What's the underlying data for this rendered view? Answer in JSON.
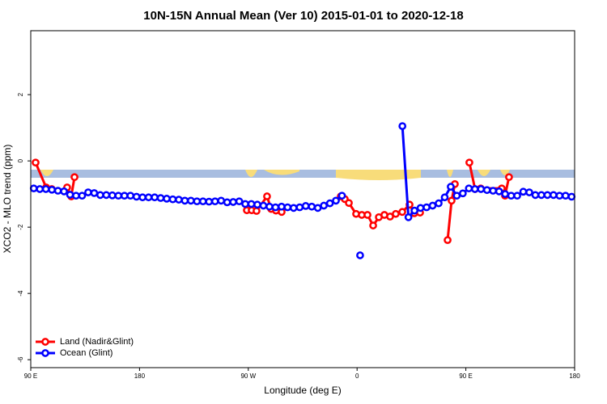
{
  "chart_data": {
    "type": "line",
    "title": "10N-15N Annual Mean (Ver 10)   2015-01-01 to 2020-12-18",
    "x_label": "Longitude (deg E)",
    "y_label": "XCO2 - MLO trend (ppm)",
    "xlim": [
      90,
      540
    ],
    "xticks": [
      {
        "value": 90,
        "label": "90 E"
      },
      180,
      {
        "value": 270,
        "label": "90 W"
      },
      {
        "value": 360,
        "label": "0"
      },
      {
        "value": 450,
        "label": "90 E"
      },
      {
        "value": 540,
        "label": "180"
      }
    ],
    "ylim": [
      -6.24,
      3.93
    ],
    "yticks": [
      -6,
      -4,
      -2,
      0,
      2
    ],
    "legend": "bottom-left",
    "series": [
      {
        "name": "Land (Nadir&Glint)",
        "color": "#ff0000",
        "x": [
          94.0,
          102.7,
          107.4,
          110,
          120.1,
          123.5,
          126.2,
          130,
          268.8,
          272.8,
          276.8,
          285.5,
          288.9,
          292.9,
          297.6,
          300,
          346.5,
          349.8,
          353.2,
          359.2,
          363.9,
          368.6,
          373.3,
          378.0,
          382.6,
          387.3,
          392.0,
          397.4,
          403.4,
          407.4,
          412.1,
          420,
          434.9,
          438.2,
          440.9,
          445,
          452.9,
          457.6,
          462.3,
          479.7,
          482.4,
          485.7
        ],
        "values": [
          -0.05,
          -0.8,
          -0.85,
          null,
          -0.8,
          -1.07,
          -0.49,
          null,
          -1.49,
          -1.49,
          -1.51,
          -1.07,
          -1.45,
          -1.5,
          -1.54,
          null,
          -1.07,
          -1.15,
          -1.27,
          -1.6,
          -1.63,
          -1.63,
          -1.95,
          -1.7,
          -1.63,
          -1.68,
          -1.6,
          -1.54,
          -1.32,
          -1.58,
          -1.56,
          null,
          -2.39,
          -1.2,
          -0.7,
          null,
          -0.05,
          -0.85,
          -0.83,
          -0.83,
          -1.05,
          -0.49
        ]
      },
      {
        "name": "Ocean (Glint)",
        "color": "#0000ff",
        "x": [
          92.5,
          97.5,
          102.5,
          107.5,
          112.5,
          117.5,
          122.5,
          127.5,
          132.5,
          137.5,
          142.5,
          147.5,
          152.5,
          157.5,
          162.5,
          167.5,
          172.5,
          177.5,
          182.5,
          187.5,
          192.5,
          197.5,
          202.5,
          207.5,
          212.5,
          217.5,
          222.5,
          227.5,
          232.5,
          237.5,
          242.5,
          247.5,
          252.5,
          257.5,
          262.5,
          267.5,
          272.5,
          277.5,
          282.5,
          287.5,
          292.5,
          297.5,
          302.5,
          307.5,
          312.5,
          317.5,
          322.5,
          327.5,
          332.5,
          337.5,
          342.5,
          347.5,
          352.5,
          357.5,
          362.5,
          367.5,
          372.5,
          377.5,
          382.5,
          387.5,
          392.5,
          397.5,
          402.5,
          407.5,
          412.5,
          417.5,
          422.5,
          427.5,
          432.5,
          437.5,
          442.5,
          447.5,
          452.5,
          457.5,
          462.5,
          467.5,
          472.5,
          477.5,
          482.5,
          487.5,
          492.5,
          497.5,
          502.5,
          507.5,
          512.5,
          517.5,
          522.5,
          527.5,
          532.5,
          537.5
        ],
        "values": [
          -0.83,
          -0.85,
          -0.85,
          -0.87,
          -0.9,
          -0.92,
          -1.02,
          -1.05,
          -1.05,
          -0.95,
          -0.97,
          -1.03,
          -1.03,
          -1.04,
          -1.05,
          -1.05,
          -1.05,
          -1.08,
          -1.1,
          -1.1,
          -1.1,
          -1.12,
          -1.14,
          -1.16,
          -1.17,
          -1.2,
          -1.2,
          -1.22,
          -1.22,
          -1.23,
          -1.22,
          -1.2,
          -1.25,
          -1.24,
          -1.22,
          -1.3,
          -1.3,
          -1.32,
          -1.35,
          -1.38,
          -1.4,
          -1.38,
          -1.4,
          -1.42,
          -1.4,
          -1.36,
          -1.38,
          -1.42,
          -1.35,
          -1.28,
          -1.2,
          -1.05,
          null,
          null,
          -2.85,
          null,
          null,
          null,
          null,
          null,
          null,
          1.05,
          -1.7,
          -1.5,
          -1.42,
          -1.4,
          -1.35,
          -1.28,
          -1.1,
          -0.78,
          -1.05,
          -0.98,
          -0.83,
          -0.85,
          -0.85,
          -0.88,
          -0.9,
          -0.92,
          -1.0,
          -1.05,
          -1.05,
          -0.93,
          -0.95,
          -1.03,
          -1.03,
          -1.03,
          -1.03,
          -1.05,
          -1.05,
          -1.08
        ]
      }
    ]
  }
}
